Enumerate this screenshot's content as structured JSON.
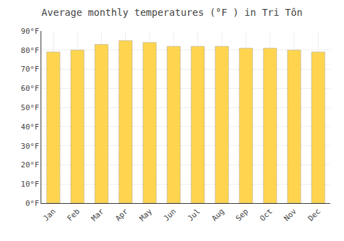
{
  "chart_data": {
    "type": "bar",
    "title": "Average monthly temperatures (°F ) in Tri Tôn",
    "categories": [
      "Jan",
      "Feb",
      "Mar",
      "Apr",
      "May",
      "Jun",
      "Jul",
      "Aug",
      "Sep",
      "Oct",
      "Nov",
      "Dec"
    ],
    "values": [
      79,
      80,
      83,
      85,
      84,
      82,
      82,
      82,
      81,
      81,
      80,
      79
    ],
    "color": "#FFD54F",
    "ylim": [
      0,
      90
    ],
    "yticks": [
      {
        "value": 0,
        "label": "0°F"
      },
      {
        "value": 10,
        "label": "10°F"
      },
      {
        "value": 20,
        "label": "20°F"
      },
      {
        "value": 30,
        "label": "30°F"
      },
      {
        "value": 40,
        "label": "40°F"
      },
      {
        "value": 50,
        "label": "50°F"
      },
      {
        "value": 60,
        "label": "60°F"
      },
      {
        "value": 70,
        "label": "70°F"
      },
      {
        "value": 80,
        "label": "80°F"
      },
      {
        "value": 90,
        "label": "90°F"
      }
    ],
    "grid": true
  }
}
